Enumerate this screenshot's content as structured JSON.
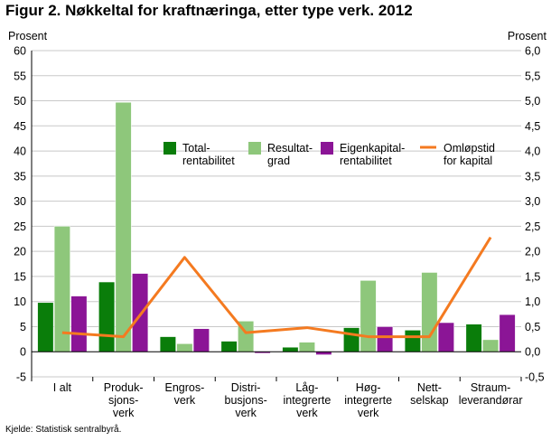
{
  "title": "Figur 2. Nøkkeltal for kraftnæringa, etter type verk. 2012",
  "source": "Kjelde: Statistisk sentralbyrå.",
  "colors": {
    "total": "#0a7d0a",
    "resultat": "#8ec77b",
    "eigenkapital": "#8b1596",
    "omlop": "#f47a20",
    "grid": "#c8c8c8",
    "axis": "#000000"
  },
  "chart_data": {
    "type": "bar",
    "title": "Figur 2. Nøkkeltal for kraftnæringa, etter type verk. 2012",
    "ylabel": "Prosent",
    "y2label": "Prosent",
    "ylim": [
      -5,
      60
    ],
    "y2lim": [
      -0.5,
      6.0
    ],
    "yticks": [
      "-5",
      "0",
      "5",
      "10",
      "15",
      "20",
      "25",
      "30",
      "35",
      "40",
      "45",
      "50",
      "55",
      "60"
    ],
    "y2ticks": [
      "-0,5",
      "0,0",
      "0,5",
      "1,0",
      "1,5",
      "2,0",
      "2,5",
      "3,0",
      "3,5",
      "4,0",
      "4,5",
      "5,0",
      "5,5",
      "6,0"
    ],
    "grid": true,
    "legend_position": "top-right",
    "categories": [
      [
        "I alt"
      ],
      [
        "Produk-",
        "sjons-",
        "verk"
      ],
      [
        "Engros-",
        "verk"
      ],
      [
        "Distri-",
        "busjons-",
        "verk"
      ],
      [
        "Låg-",
        "integrerte",
        "verk"
      ],
      [
        "Høg-",
        "integrerte",
        "verk"
      ],
      [
        "Nett-",
        "selskap"
      ],
      [
        "Straum-",
        "leverandørar"
      ]
    ],
    "series": [
      {
        "name": "Total-\nrentabilitet",
        "legend": [
          "Total-",
          "rentabilitet"
        ],
        "type": "bar",
        "axis": "left",
        "color_key": "total",
        "values": [
          9.8,
          13.9,
          3.0,
          2.1,
          0.9,
          4.8,
          4.3,
          5.5
        ]
      },
      {
        "name": "Resultat-\ngrad",
        "legend": [
          "Resultat-",
          "grad"
        ],
        "type": "bar",
        "axis": "left",
        "color_key": "resultat",
        "values": [
          25.0,
          49.7,
          1.6,
          6.1,
          1.9,
          14.2,
          15.8,
          2.4
        ]
      },
      {
        "name": "Eigenkapital-\nrentabilitet",
        "legend": [
          "Eigenkapital-",
          "rentabilitet"
        ],
        "type": "bar",
        "axis": "left",
        "color_key": "eigenkapital",
        "values": [
          11.1,
          15.6,
          4.6,
          -0.3,
          -0.6,
          5.0,
          5.8,
          7.4
        ]
      },
      {
        "name": "Omløpstid\nfor kapital",
        "legend": [
          "Omløpstid",
          "for kapital"
        ],
        "type": "line",
        "axis": "right",
        "color_key": "omlop",
        "values": [
          0.38,
          0.3,
          1.88,
          0.38,
          0.48,
          0.3,
          0.3,
          2.28
        ]
      }
    ]
  }
}
